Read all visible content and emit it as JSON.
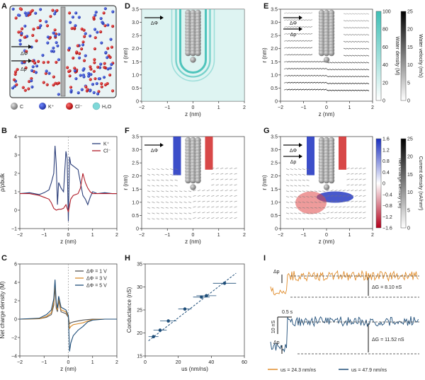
{
  "figure": {
    "panels": [
      "A",
      "B",
      "C",
      "D",
      "E",
      "F",
      "G",
      "H",
      "I"
    ],
    "panelA": {
      "legend": [
        {
          "symbol": "C",
          "label": "C",
          "color": "#8a8a8a"
        },
        {
          "symbol": "K+",
          "label": "K⁺",
          "color": "#2a3fbf"
        },
        {
          "symbol": "Cl-",
          "label": "Cl⁻",
          "color": "#c01818"
        },
        {
          "symbol": "H2O",
          "label": "H₂O",
          "color": "#7fd8d8"
        }
      ],
      "arrow1": "ΔΦ",
      "arrow2": "Δp"
    },
    "fields": {
      "axis_x_label": "z (nm)",
      "axis_y_label": "r (nm)",
      "x_ticks": [
        "−2",
        "−1",
        "0",
        "1",
        "2"
      ],
      "y_ticks": [
        "0",
        "0.5",
        "1.0",
        "1.5",
        "2.0",
        "2.5",
        "3.0",
        "3.5"
      ],
      "D_arrows": [
        "ΔΦ"
      ],
      "E_arrows": [
        "ΔΦ",
        "Δp"
      ],
      "F_arrows": [
        "ΔΦ"
      ],
      "G_arrows": [
        "ΔΦ",
        "Δp"
      ],
      "water_cbar": {
        "label": "Water density (M)",
        "ticks": [
          "100",
          "80",
          "60",
          "40",
          "20",
          "0"
        ]
      },
      "velocity_cbar": {
        "label": "Water velocity (m/s)",
        "ticks": [
          "25",
          "20",
          "15",
          "10",
          "5",
          "0"
        ]
      },
      "charge_cbar": {
        "label": "Net charge density (M)",
        "ticks": [
          "1.6",
          "1.2",
          "0.8",
          "0.4",
          "0",
          "−0.4",
          "−0.8",
          "−1.2",
          "−1.6"
        ]
      },
      "current_cbar": {
        "label": "Current density (nA/nm²)",
        "ticks": [
          "25",
          "20",
          "15",
          "10",
          "5",
          "0"
        ]
      }
    },
    "chart_data": [
      {
        "id": "B",
        "type": "line",
        "title": "",
        "xlabel": "z (nm)",
        "ylabel": "ρ/ρbulk",
        "xlim": [
          -2,
          2
        ],
        "ylim": [
          -1,
          4
        ],
        "x_ticks": [
          "−2",
          "−1",
          "0",
          "1",
          "2"
        ],
        "y_ticks": [
          "−1",
          "0",
          "1",
          "2",
          "3",
          "4"
        ],
        "legend": "top-right",
        "series": [
          {
            "name": "K⁺",
            "color": "#2a3d78",
            "x": [
              -2,
              -1.6,
              -1.2,
              -1.0,
              -0.8,
              -0.7,
              -0.6,
              -0.55,
              -0.5,
              -0.45,
              -0.4,
              -0.3,
              -0.2,
              -0.1,
              -0.05,
              0.0,
              0.05,
              0.1,
              0.2,
              0.4,
              0.6,
              0.7,
              0.8,
              0.9,
              1.0,
              1.2,
              1.5,
              1.8,
              2.0
            ],
            "y": [
              0.9,
              0.95,
              0.85,
              0.95,
              1.1,
              1.5,
              2.0,
              3.5,
              2.5,
              0.3,
              1.5,
              1.2,
              1.0,
              3.2,
              2.8,
              -0.6,
              2.9,
              2.5,
              2.4,
              2.2,
              0.8,
              0.6,
              0.3,
              0.7,
              1.0,
              0.9,
              0.95,
              0.9,
              0.9
            ]
          },
          {
            "name": "Cl⁻",
            "color": "#b01c28",
            "x": [
              -2,
              -1.6,
              -1.2,
              -1.0,
              -0.8,
              -0.7,
              -0.6,
              -0.5,
              -0.4,
              -0.3,
              -0.2,
              -0.1,
              0.0,
              0.1,
              0.2,
              0.4,
              0.5,
              0.6,
              0.7,
              0.8,
              0.9,
              1.0,
              1.2,
              1.5,
              1.8,
              2.0
            ],
            "y": [
              0.9,
              0.9,
              0.8,
              0.7,
              0.6,
              0.4,
              0.1,
              0.0,
              0.05,
              0.05,
              0.1,
              0.3,
              -0.1,
              0.6,
              0.8,
              0.9,
              1.2,
              2.0,
              1.5,
              1.2,
              1.0,
              0.9,
              0.9,
              0.9,
              0.9,
              0.9
            ]
          }
        ]
      },
      {
        "id": "C",
        "type": "line",
        "title": "",
        "xlabel": "z (nm)",
        "ylabel": "Net charge density (M)",
        "xlim": [
          -2,
          2
        ],
        "ylim": [
          -4,
          6
        ],
        "x_ticks": [
          "−2",
          "−1",
          "0",
          "1",
          "2"
        ],
        "y_ticks": [
          "−4",
          "−2",
          "0",
          "2",
          "4",
          "6"
        ],
        "legend": "top-right",
        "series": [
          {
            "name": "ΔΦ = 1 V",
            "color": "#555555",
            "x": [
              -2,
              -1.2,
              -0.9,
              -0.7,
              -0.6,
              -0.55,
              -0.5,
              -0.45,
              -0.4,
              -0.3,
              -0.1,
              0.0,
              0.05,
              0.1,
              0.2,
              0.4,
              0.6,
              0.8,
              1.0,
              1.5,
              2.0
            ],
            "y": [
              0,
              0.05,
              0.2,
              0.5,
              1.5,
              3.5,
              1.2,
              0.8,
              2.0,
              0.8,
              0.6,
              0.2,
              -0.5,
              -0.4,
              -0.3,
              -0.2,
              -0.1,
              -0.05,
              0,
              0,
              0
            ]
          },
          {
            "name": "ΔΦ = 3 V",
            "color": "#d98a28",
            "x": [
              -2,
              -1.2,
              -0.9,
              -0.7,
              -0.6,
              -0.55,
              -0.5,
              -0.45,
              -0.4,
              -0.3,
              -0.1,
              0.0,
              0.05,
              0.1,
              0.2,
              0.4,
              0.6,
              0.8,
              1.0,
              1.5,
              2.0
            ],
            "y": [
              0,
              0.05,
              0.3,
              0.7,
              1.8,
              3.8,
              1.5,
              1.0,
              2.2,
              1.0,
              0.8,
              0.3,
              -1.0,
              -0.8,
              -0.6,
              -0.5,
              -0.4,
              -0.2,
              -0.05,
              0,
              0
            ]
          },
          {
            "name": "ΔΦ = 5 V",
            "color": "#1f4e79",
            "x": [
              -2,
              -1.2,
              -0.9,
              -0.7,
              -0.6,
              -0.55,
              -0.5,
              -0.45,
              -0.4,
              -0.3,
              -0.1,
              0.0,
              0.05,
              0.1,
              0.2,
              0.4,
              0.6,
              0.8,
              1.0,
              1.5,
              2.0
            ],
            "y": [
              0,
              0.1,
              0.5,
              1.0,
              2.2,
              4.3,
              1.8,
              1.2,
              2.5,
              1.3,
              1.0,
              0.4,
              -3.5,
              -2.6,
              -1.8,
              -1.2,
              -0.8,
              -0.3,
              -0.1,
              0,
              0
            ]
          }
        ]
      },
      {
        "id": "H",
        "type": "scatter",
        "title": "",
        "xlabel": "us (nm/ns)",
        "ylabel": "Conductance (nS)",
        "xlim": [
          0,
          60
        ],
        "ylim": [
          15,
          35
        ],
        "x_ticks": [
          "0",
          "20",
          "40",
          "60"
        ],
        "y_ticks": [
          "15",
          "20",
          "25",
          "30",
          "35"
        ],
        "x": [
          5,
          9,
          14,
          24,
          34,
          37,
          48
        ],
        "y": [
          19.2,
          20.6,
          22.6,
          25.2,
          27.8,
          28.1,
          30.8
        ],
        "xerr": [
          3,
          4,
          5,
          4,
          5,
          6,
          7
        ],
        "fit": {
          "x": [
            2,
            55
          ],
          "y": [
            18.3,
            33.0
          ]
        },
        "color": "#1f4e79"
      }
    ],
    "panelI": {
      "orange": {
        "label": "us = 24.3 nm/ns",
        "delta": "ΔG = 8.10 nS",
        "color": "#e08c2b"
      },
      "blue": {
        "label": "us = 47.9 nm/ns",
        "delta": "ΔG = 11.52 nS",
        "color": "#1f4e79"
      },
      "dp_label": "Δp",
      "scale_time": "0.5 s",
      "scale_g": "10 nS"
    }
  }
}
